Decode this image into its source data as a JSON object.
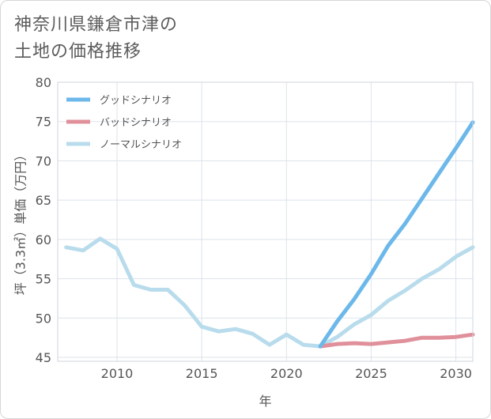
{
  "chart_data": {
    "type": "line",
    "title": [
      "神奈川県鎌倉市津の",
      "土地の価格推移"
    ],
    "xlabel": "年",
    "ylabel": "坪（3.3㎡）単価（万円）",
    "xlim": [
      2006.5,
      2031
    ],
    "ylim": [
      44.5,
      80
    ],
    "xticks": [
      2010,
      2015,
      2020,
      2025,
      2030
    ],
    "yticks": [
      45,
      50,
      55,
      60,
      65,
      70,
      75,
      80
    ],
    "grid": true,
    "legend_position": "top-left",
    "series": [
      {
        "name": "グッドシナリオ",
        "color": "#6cb8ea",
        "x": [
          2022,
          2023,
          2024,
          2025,
          2026,
          2027,
          2028,
          2029,
          2030,
          2031
        ],
        "values": [
          46.4,
          49.6,
          52.4,
          55.6,
          59.2,
          62.0,
          65.2,
          68.4,
          71.6,
          74.9
        ]
      },
      {
        "name": "バッドシナリオ",
        "color": "#e0909a",
        "x": [
          2022,
          2023,
          2024,
          2025,
          2026,
          2027,
          2028,
          2029,
          2030,
          2031
        ],
        "values": [
          46.4,
          46.7,
          46.8,
          46.7,
          46.9,
          47.1,
          47.5,
          47.5,
          47.6,
          47.9
        ]
      },
      {
        "name": "ノーマルシナリオ",
        "color": "#b9dcec",
        "x": [
          2007,
          2008,
          2009,
          2010,
          2011,
          2012,
          2013,
          2014,
          2015,
          2016,
          2017,
          2018,
          2019,
          2020,
          2021,
          2022,
          2023,
          2024,
          2025,
          2026,
          2027,
          2028,
          2029,
          2030,
          2031
        ],
        "values": [
          59.0,
          58.6,
          60.1,
          58.8,
          54.2,
          53.6,
          53.6,
          51.6,
          48.9,
          48.3,
          48.6,
          48.0,
          46.6,
          47.9,
          46.6,
          46.4,
          47.6,
          49.2,
          50.4,
          52.2,
          53.5,
          55.0,
          56.2,
          57.8,
          59.0
        ]
      }
    ]
  }
}
